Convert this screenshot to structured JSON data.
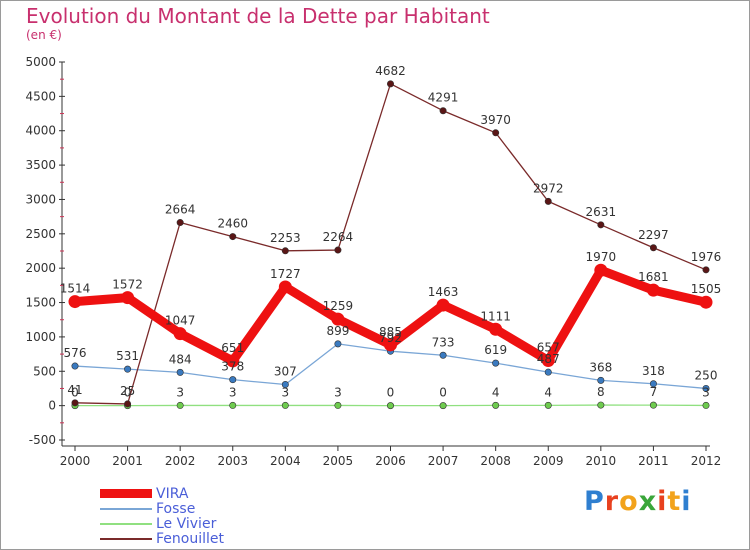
{
  "title": "Evolution du Montant de la Dette par Habitant",
  "subtitle": "(en €)",
  "logo_text": "Proxiti",
  "colors": {
    "title": "#c8306e",
    "axis": "#333333",
    "grid": "#dddddd",
    "legend_text": "#4a5ed8"
  },
  "chart_data": {
    "type": "line",
    "x": [
      "2000",
      "2001",
      "2002",
      "2003",
      "2004",
      "2005",
      "2006",
      "2007",
      "2008",
      "2009",
      "2010",
      "2011",
      "2012"
    ],
    "ylim": [
      -500,
      5000
    ],
    "yticks": [
      -500,
      0,
      500,
      1000,
      1500,
      2000,
      2500,
      3000,
      3500,
      4000,
      4500,
      5000
    ],
    "grid": false,
    "legend_position": "bottom-left",
    "series": [
      {
        "name": "VIRA",
        "values": [
          1514,
          1572,
          1047,
          651,
          1727,
          1259,
          885,
          1463,
          1111,
          657,
          1970,
          1681,
          1505
        ],
        "color": "#ee1111",
        "marker": "#ee1111"
      },
      {
        "name": "Fosse",
        "values": [
          576,
          531,
          484,
          378,
          307,
          899,
          792,
          733,
          619,
          487,
          368,
          318,
          250
        ],
        "color": "#7aa6d6",
        "marker": "#3a7ac0"
      },
      {
        "name": "Le Vivier",
        "values": [
          0,
          0,
          3,
          3,
          3,
          3,
          0,
          0,
          4,
          4,
          8,
          7,
          3
        ],
        "color": "#90e080",
        "marker": "#6ecb4e"
      },
      {
        "name": "Fenouillet",
        "values": [
          41,
          25,
          2664,
          2460,
          2253,
          2264,
          4682,
          4291,
          3970,
          2972,
          2631,
          2297,
          1976
        ],
        "color": "#7a2a2a",
        "marker": "#5a1616"
      }
    ]
  }
}
